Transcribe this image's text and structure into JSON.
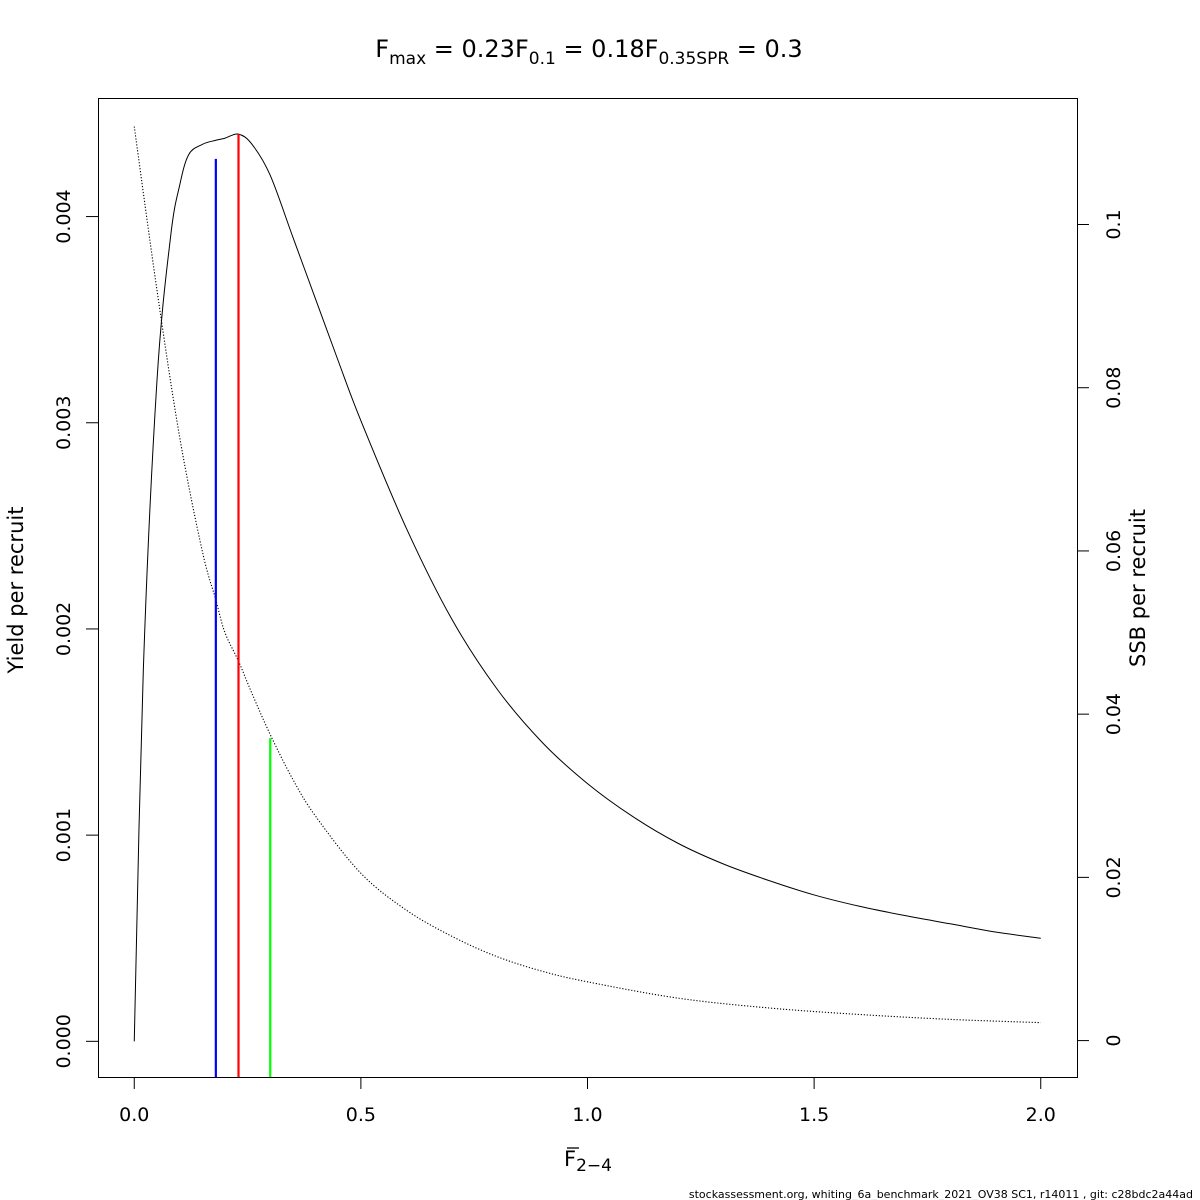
{
  "chart_data": {
    "type": "line",
    "title_parts": [
      {
        "main": "F",
        "sub": "max",
        "rest": " = 0.23"
      },
      {
        "main": "F",
        "sub": "0.1",
        "rest": " = 0.18"
      },
      {
        "main": "F",
        "sub": "0.35SPR",
        "rest": " = 0.3"
      }
    ],
    "xlabel": {
      "main": "F",
      "sub": "2−4"
    },
    "ylabel_left": "Yield per recruit",
    "ylabel_right": "SSB per recruit",
    "xlim": [
      -0.08,
      2.08
    ],
    "ylim_left": [
      -0.000173,
      0.004575
    ],
    "ylim_right": [
      -0.004461,
      0.1155
    ],
    "x_ticks": [
      0,
      0.5,
      1,
      1.5,
      2
    ],
    "x_tick_labels": [
      "0.0",
      "0.5",
      "1.0",
      "1.5",
      "2.0"
    ],
    "y_left_ticks": [
      0,
      0.001,
      0.002,
      0.003,
      0.004
    ],
    "y_left_tick_labels": [
      "0.000",
      "0.001",
      "0.002",
      "0.003",
      "0.004"
    ],
    "y_right_ticks": [
      0,
      0.02,
      0.04,
      0.06,
      0.08,
      0.1
    ],
    "y_right_tick_labels": [
      "0",
      "0.02",
      "0.04",
      "0.06",
      "0.08",
      "0.1"
    ],
    "series": [
      {
        "axis": "left",
        "style": "solid",
        "color": "#000000",
        "x": [
          0,
          0.02,
          0.05,
          0.08,
          0.1,
          0.12,
          0.15,
          0.18,
          0.2,
          0.23,
          0.26,
          0.3,
          0.35,
          0.4,
          0.45,
          0.5,
          0.6,
          0.7,
          0.8,
          0.9,
          1.0,
          1.1,
          1.2,
          1.3,
          1.4,
          1.5,
          1.6,
          1.7,
          1.8,
          1.9,
          2.0
        ],
        "y": [
          0,
          0.0018,
          0.0032,
          0.0039,
          0.00415,
          0.0043,
          0.00435,
          0.00437,
          0.00438,
          0.0044,
          0.00435,
          0.0042,
          0.0039,
          0.0036,
          0.0033,
          0.00301,
          0.00249,
          0.00205,
          0.00171,
          0.00145,
          0.00125,
          0.00109,
          0.00096,
          0.00086,
          0.00078,
          0.00071,
          0.000655,
          0.00061,
          0.00057,
          0.00053,
          0.0005
        ]
      },
      {
        "axis": "right",
        "style": "dotted",
        "color": "#000000",
        "x": [
          0,
          0.05,
          0.1,
          0.15,
          0.18,
          0.2,
          0.23,
          0.26,
          0.3,
          0.35,
          0.4,
          0.5,
          0.6,
          0.7,
          0.8,
          0.9,
          1.0,
          1.2,
          1.4,
          1.6,
          1.8,
          2.0
        ],
        "y": [
          0.112,
          0.092,
          0.074,
          0.06,
          0.054,
          0.05,
          0.0465,
          0.0425,
          0.0375,
          0.032,
          0.0275,
          0.0205,
          0.016,
          0.0128,
          0.0103,
          0.0085,
          0.0072,
          0.0052,
          0.004,
          0.0032,
          0.0026,
          0.0022
        ]
      }
    ],
    "reference_lines": [
      {
        "x": 0.18,
        "y_top": 0.00428,
        "color": "#0000ff"
      },
      {
        "x": 0.23,
        "y_top": 0.0044,
        "color": "#ff0000"
      },
      {
        "x": 0.3,
        "y_top": 0.00147,
        "color": "#00ff00"
      }
    ],
    "footer": "stockassessment.org, whiting_6a_benchmark_2021_OV38   SC1, r14011 , git: c28bdc2a44ad",
    "grid": false,
    "legend": "none"
  }
}
